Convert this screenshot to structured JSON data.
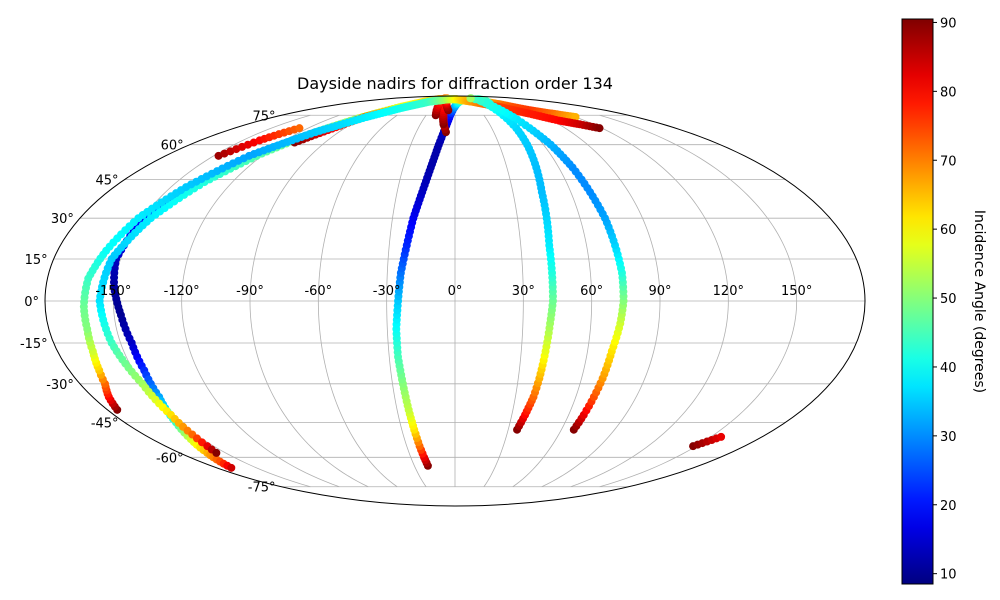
{
  "chart_data": {
    "type": "scatter",
    "projection": "mollweide",
    "title": "Dayside nadirs for diffraction order 134",
    "xlabel": "",
    "ylabel": "",
    "grid": true,
    "lon_ticks": [
      -150,
      -120,
      -90,
      -60,
      -30,
      0,
      30,
      60,
      90,
      120,
      150
    ],
    "lat_ticks": [
      -75,
      -60,
      -45,
      -30,
      -15,
      0,
      15,
      30,
      45,
      60,
      75
    ],
    "lon_tick_labels": [
      "-150°",
      "-120°",
      "-90°",
      "-60°",
      "-30°",
      "0°",
      "30°",
      "60°",
      "90°",
      "120°",
      "150°"
    ],
    "lat_tick_labels": [
      "-75°",
      "-60°",
      "-45°",
      "-30°",
      "-15°",
      "0°",
      "15°",
      "30°",
      "45°",
      "60°",
      "75°"
    ],
    "colorbar": {
      "label": "Incidence Angle (degrees)",
      "colormap": "jet",
      "range": [
        8.5,
        90.5
      ],
      "ticks": [
        10,
        20,
        30,
        40,
        50,
        60,
        70,
        80,
        90
      ],
      "tick_labels": [
        "10",
        "20",
        "30",
        "40",
        "50",
        "60",
        "70",
        "80",
        "90"
      ]
    },
    "tracks": [
      {
        "points": [
          [
            -20,
            -64,
            90
          ],
          [
            -21,
            -60,
            82
          ],
          [
            -22,
            -55,
            72
          ],
          [
            -23,
            -48,
            62
          ],
          [
            -24,
            -40,
            55
          ],
          [
            -25,
            -30,
            50
          ],
          [
            -26,
            -20,
            45
          ],
          [
            -26,
            -10,
            40
          ],
          [
            -25,
            0,
            35
          ],
          [
            -24,
            10,
            28
          ],
          [
            -22,
            20,
            22
          ],
          [
            -20,
            30,
            18
          ],
          [
            -17,
            40,
            14
          ],
          [
            -14,
            50,
            12
          ],
          [
            -11,
            60,
            12
          ],
          [
            -8,
            68,
            14
          ],
          [
            -5,
            75,
            20
          ],
          [
            -2,
            79,
            28
          ],
          [
            2,
            82,
            35
          ],
          [
            8,
            84,
            42
          ],
          [
            15,
            85,
            48
          ],
          [
            22,
            85,
            52
          ],
          [
            30,
            85,
            56
          ],
          [
            40,
            85,
            60
          ],
          [
            55,
            84,
            65
          ],
          [
            70,
            82,
            70
          ],
          [
            80,
            80,
            74
          ],
          [
            90,
            78,
            76
          ],
          [
            105,
            76,
            72
          ],
          [
            120,
            74,
            66
          ]
        ]
      },
      {
        "points": [
          [
            -7,
            66,
            90
          ],
          [
            -9,
            69,
            86
          ],
          [
            -11,
            73,
            82
          ],
          [
            -13,
            77,
            78
          ],
          [
            -16,
            81,
            74
          ],
          [
            -20,
            84,
            70
          ],
          [
            -25,
            86,
            64
          ],
          [
            -30,
            86,
            58
          ],
          [
            -40,
            86,
            54
          ],
          [
            -52,
            84,
            50
          ],
          [
            -65,
            81,
            46
          ],
          [
            -80,
            77,
            42
          ],
          [
            -95,
            72,
            38
          ],
          [
            -110,
            65,
            34
          ],
          [
            -125,
            56,
            30
          ],
          [
            -137,
            45,
            26
          ],
          [
            -145,
            35,
            22
          ],
          [
            -150,
            25,
            18
          ],
          [
            -152,
            15,
            14
          ],
          [
            -150,
            5,
            11
          ],
          [
            -147,
            -5,
            10
          ],
          [
            -145,
            -15,
            14
          ],
          [
            -145,
            -25,
            22
          ],
          [
            -147,
            -35,
            32
          ],
          [
            -152,
            -45,
            44
          ],
          [
            -157,
            -52,
            56
          ],
          [
            -162,
            -58,
            66
          ],
          [
            -166,
            -62,
            74
          ],
          [
            -169,
            -65,
            84
          ]
        ]
      },
      {
        "points": [
          [
            -10,
            70,
            90
          ],
          [
            -12,
            74,
            86
          ],
          [
            -14,
            78,
            82
          ],
          [
            -17,
            82,
            78
          ],
          [
            -22,
            85,
            74
          ],
          [
            -30,
            86,
            70
          ],
          [
            -42,
            86,
            66
          ],
          [
            -58,
            84,
            62
          ],
          [
            -75,
            80,
            58
          ],
          [
            -92,
            74,
            54
          ],
          [
            -108,
            66,
            50
          ],
          [
            -122,
            56,
            46
          ],
          [
            -135,
            44,
            42
          ],
          [
            -146,
            30,
            38
          ],
          [
            -154,
            15,
            35
          ],
          [
            -156,
            0,
            37
          ],
          [
            -154,
            -15,
            44
          ],
          [
            -150,
            -30,
            52
          ],
          [
            -150,
            -42,
            62
          ],
          [
            -152,
            -50,
            72
          ],
          [
            -154,
            -55,
            82
          ],
          [
            -156,
            -58,
            90
          ]
        ]
      },
      {
        "points": [
          [
            -147,
            55,
            88
          ],
          [
            -143,
            58,
            84
          ],
          [
            -138,
            62,
            80
          ],
          [
            -133,
            65,
            76
          ],
          [
            -127,
            68,
            72
          ]
        ]
      },
      {
        "points": [
          [
            -111,
            61,
            90
          ],
          [
            -106,
            64,
            86
          ],
          [
            -101,
            67,
            82
          ],
          [
            -96,
            70,
            78
          ],
          [
            -90,
            74,
            72
          ],
          [
            -84,
            76,
            68
          ],
          [
            -78,
            78,
            64
          ]
        ]
      },
      {
        "points": [
          [
            -20,
            75,
            90
          ],
          [
            -22,
            78,
            86
          ],
          [
            -24,
            81,
            82
          ],
          [
            -26,
            84,
            78
          ],
          [
            -28,
            86,
            74
          ],
          [
            -30,
            87,
            70
          ]
        ]
      },
      {
        "points": [
          [
            -8,
            78,
            90
          ],
          [
            -12,
            81,
            86
          ],
          [
            -16,
            84,
            80
          ],
          [
            -20,
            86,
            74
          ],
          [
            -24,
            87,
            70
          ]
        ]
      },
      {
        "points": [
          [
            -175,
            -40,
            90
          ],
          [
            -172,
            -35,
            80
          ],
          [
            -168,
            -30,
            72
          ],
          [
            -166,
            -25,
            64
          ],
          [
            -164,
            -18,
            56
          ],
          [
            -163,
            -10,
            50
          ],
          [
            -163,
            -2,
            48
          ],
          [
            -162,
            8,
            44
          ],
          [
            -158,
            18,
            40
          ],
          [
            -152,
            30,
            38
          ],
          [
            -142,
            42,
            35
          ],
          [
            -128,
            55,
            32
          ],
          [
            -108,
            66,
            35
          ],
          [
            -88,
            74,
            38
          ],
          [
            -68,
            80,
            41
          ],
          [
            -48,
            84,
            44
          ],
          [
            -32,
            85,
            48
          ],
          [
            -20,
            86,
            52
          ],
          [
            -8,
            86,
            56
          ],
          [
            5,
            86,
            60
          ],
          [
            18,
            85,
            64
          ],
          [
            32,
            84,
            68
          ],
          [
            48,
            82,
            72
          ],
          [
            62,
            80,
            75
          ],
          [
            80,
            76,
            78
          ],
          [
            96,
            72,
            80
          ],
          [
            108,
            70,
            84
          ],
          [
            118,
            68,
            90
          ]
        ]
      },
      {
        "points": [
          [
            35,
            -48,
            90
          ],
          [
            37,
            -42,
            80
          ],
          [
            39,
            -35,
            72
          ],
          [
            40,
            -28,
            66
          ],
          [
            41,
            -18,
            58
          ],
          [
            42,
            -8,
            52
          ],
          [
            43,
            0,
            48
          ],
          [
            43,
            10,
            42
          ],
          [
            43,
            20,
            38
          ],
          [
            44,
            30,
            36
          ],
          [
            45,
            40,
            34
          ],
          [
            47,
            50,
            34
          ],
          [
            49,
            60,
            35
          ],
          [
            50,
            68,
            36
          ],
          [
            50,
            75,
            38
          ],
          [
            50,
            80,
            40
          ],
          [
            51,
            84,
            42
          ],
          [
            55,
            86,
            44
          ],
          [
            60,
            86,
            45
          ],
          [
            64,
            85,
            46
          ],
          [
            60,
            84,
            44
          ],
          [
            55,
            82,
            42
          ]
        ]
      },
      {
        "points": [
          [
            67,
            -48,
            90
          ],
          [
            68,
            -42,
            82
          ],
          [
            69,
            -35,
            74
          ],
          [
            70,
            -28,
            68
          ],
          [
            71,
            -18,
            62
          ],
          [
            73,
            -8,
            56
          ],
          [
            74,
            0,
            50
          ],
          [
            74,
            10,
            42
          ],
          [
            73,
            20,
            36
          ],
          [
            72,
            30,
            32
          ],
          [
            70,
            40,
            30
          ],
          [
            68,
            50,
            30
          ],
          [
            65,
            60,
            33
          ],
          [
            61,
            68,
            36
          ],
          [
            58,
            74,
            38
          ],
          [
            55,
            79,
            40
          ],
          [
            52,
            83,
            42
          ],
          [
            50,
            86,
            44
          ],
          [
            48,
            87,
            48
          ],
          [
            46,
            87,
            52
          ]
        ]
      },
      {
        "points": [
          [
            148,
            -55,
            90
          ],
          [
            152,
            -53,
            86
          ],
          [
            156,
            -51,
            82
          ]
        ]
      }
    ]
  }
}
